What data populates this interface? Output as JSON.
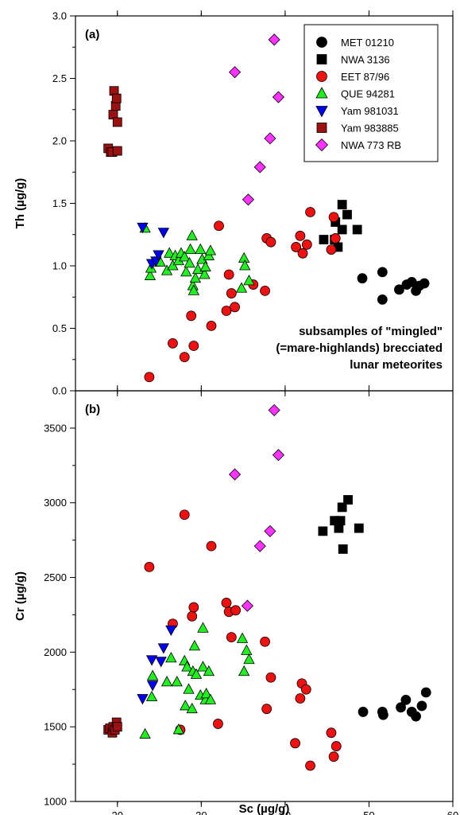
{
  "chart_data": [
    {
      "type": "scatter",
      "panel_label": "(a)",
      "xlabel": "Sc  (µg/g)",
      "ylabel": "Th  (µg/g)",
      "xlim": [
        15,
        60
      ],
      "ylim": [
        0.0,
        3.0
      ],
      "y_ticks": [
        "0.0",
        "0.5",
        "1.0",
        "1.5",
        "2.0",
        "2.5",
        "3.0"
      ],
      "x_ticks": [
        "20",
        "30",
        "40",
        "50",
        "60"
      ],
      "legend_position": "top-right",
      "annotation": [
        "subsamples of \"mingled\"",
        "(=mare-highlands) brecciated",
        "lunar meteorites"
      ],
      "series": [
        {
          "name": "MET 01210",
          "marker": "circle",
          "color": "#000000",
          "points": [
            [
              49.2,
              0.9
            ],
            [
              51.6,
              0.95
            ],
            [
              51.6,
              0.73
            ],
            [
              53.6,
              0.81
            ],
            [
              54.5,
              0.85
            ],
            [
              55.1,
              0.87
            ],
            [
              55.6,
              0.8
            ],
            [
              56.0,
              0.84
            ],
            [
              56.6,
              0.86
            ]
          ]
        },
        {
          "name": "NWA 3136",
          "marker": "square",
          "color": "#000000",
          "points": [
            [
              44.6,
              1.21
            ],
            [
              45.9,
              1.21
            ],
            [
              46.3,
              1.15
            ],
            [
              46.8,
              1.49
            ],
            [
              46.8,
              1.29
            ],
            [
              47.4,
              1.41
            ],
            [
              48.6,
              1.29
            ],
            [
              46.0,
              1.35
            ]
          ]
        },
        {
          "name": "EET 87/96",
          "marker": "circle",
          "color": "#ee1111",
          "points": [
            [
              23.8,
              0.11
            ],
            [
              26.6,
              0.38
            ],
            [
              28.0,
              0.27
            ],
            [
              28.8,
              0.6
            ],
            [
              29.1,
              0.36
            ],
            [
              31.2,
              0.52
            ],
            [
              32.1,
              1.32
            ],
            [
              33.0,
              0.64
            ],
            [
              33.3,
              0.93
            ],
            [
              33.6,
              0.78
            ],
            [
              34.0,
              0.67
            ],
            [
              36.2,
              0.85
            ],
            [
              37.6,
              0.8
            ],
            [
              37.8,
              1.22
            ],
            [
              38.3,
              1.19
            ],
            [
              41.3,
              1.15
            ],
            [
              41.8,
              1.24
            ],
            [
              42.1,
              1.1
            ],
            [
              42.6,
              1.17
            ],
            [
              43.0,
              1.43
            ],
            [
              45.5,
              1.13
            ],
            [
              45.8,
              1.39
            ],
            [
              46.0,
              1.22
            ]
          ]
        },
        {
          "name": "QUE 94281",
          "marker": "triangle-up",
          "color": "#22ee22",
          "points": [
            [
              23.3,
              1.3
            ],
            [
              23.9,
              0.92
            ],
            [
              24.0,
              0.98
            ],
            [
              24.4,
              1.03
            ],
            [
              25.1,
              1.03
            ],
            [
              25.9,
              0.96
            ],
            [
              26.2,
              1.1
            ],
            [
              26.6,
              1.0
            ],
            [
              26.9,
              1.08
            ],
            [
              27.3,
              1.04
            ],
            [
              27.6,
              1.1
            ],
            [
              28.0,
              1.07
            ],
            [
              28.2,
              0.95
            ],
            [
              28.6,
              1.02
            ],
            [
              28.7,
              1.13
            ],
            [
              28.9,
              1.24
            ],
            [
              29.0,
              0.84
            ],
            [
              29.1,
              0.8
            ],
            [
              29.3,
              0.9
            ],
            [
              29.6,
              0.97
            ],
            [
              29.9,
              1.13
            ],
            [
              30.1,
              1.05
            ],
            [
              30.4,
              0.93
            ],
            [
              30.5,
              0.99
            ],
            [
              30.9,
              1.08
            ],
            [
              31.1,
              1.12
            ],
            [
              34.8,
              0.82
            ],
            [
              35.1,
              1.06
            ],
            [
              35.2,
              1.0
            ],
            [
              35.7,
              0.88
            ]
          ]
        },
        {
          "name": "Yam 981031",
          "marker": "triangle-down",
          "color": "#0000ee",
          "points": [
            [
              23.0,
              1.31
            ],
            [
              24.1,
              1.02
            ],
            [
              24.6,
              1.04
            ],
            [
              24.9,
              1.09
            ],
            [
              25.5,
              1.27
            ]
          ]
        },
        {
          "name": "Yam 983885",
          "marker": "square",
          "color": "#991111",
          "points": [
            [
              18.9,
              1.94
            ],
            [
              19.2,
              1.91
            ],
            [
              19.4,
              1.91
            ],
            [
              19.5,
              2.21
            ],
            [
              19.6,
              2.4
            ],
            [
              19.8,
              2.28
            ],
            [
              19.9,
              2.34
            ],
            [
              20.0,
              2.15
            ],
            [
              20.0,
              1.92
            ]
          ]
        },
        {
          "name": "NWA 773 RB",
          "marker": "diamond",
          "color": "#ff33ff",
          "points": [
            [
              34.0,
              2.55
            ],
            [
              35.6,
              1.53
            ],
            [
              37.0,
              1.79
            ],
            [
              38.2,
              2.02
            ],
            [
              38.7,
              2.81
            ],
            [
              39.2,
              2.35
            ]
          ]
        }
      ]
    },
    {
      "type": "scatter",
      "panel_label": "(b)",
      "xlabel": "Sc  (µg/g)",
      "ylabel": "Cr  (µg/g)",
      "xlim": [
        15,
        60
      ],
      "ylim": [
        1000,
        3750
      ],
      "y_ticks": [
        "1000",
        "1500",
        "2000",
        "2500",
        "3000",
        "3500"
      ],
      "x_ticks": [
        "20",
        "30",
        "40",
        "50",
        "60"
      ],
      "series": [
        {
          "name": "MET 01210",
          "marker": "circle",
          "color": "#000000",
          "points": [
            [
              49.3,
              1600
            ],
            [
              51.6,
              1600
            ],
            [
              51.7,
              1580
            ],
            [
              53.8,
              1630
            ],
            [
              54.4,
              1680
            ],
            [
              55.1,
              1600
            ],
            [
              55.6,
              1570
            ],
            [
              56.3,
              1640
            ],
            [
              56.8,
              1730
            ]
          ]
        },
        {
          "name": "NWA 3136",
          "marker": "square",
          "color": "#000000",
          "points": [
            [
              44.5,
              2810
            ],
            [
              45.9,
              2880
            ],
            [
              46.4,
              2830
            ],
            [
              46.6,
              2880
            ],
            [
              46.8,
              2970
            ],
            [
              46.9,
              2690
            ],
            [
              47.5,
              3020
            ],
            [
              48.8,
              2830
            ]
          ]
        },
        {
          "name": "EET 87/96",
          "marker": "circle",
          "color": "#ee1111",
          "points": [
            [
              23.8,
              2570
            ],
            [
              26.6,
              2190
            ],
            [
              27.5,
              1480
            ],
            [
              28.0,
              2920
            ],
            [
              28.9,
              2240
            ],
            [
              29.1,
              2300
            ],
            [
              31.2,
              2710
            ],
            [
              32.0,
              1520
            ],
            [
              33.0,
              2330
            ],
            [
              33.3,
              2270
            ],
            [
              33.6,
              2100
            ],
            [
              34.1,
              2280
            ],
            [
              37.6,
              2070
            ],
            [
              37.8,
              1620
            ],
            [
              38.3,
              1830
            ],
            [
              41.2,
              1390
            ],
            [
              41.8,
              1690
            ],
            [
              42.0,
              1790
            ],
            [
              42.5,
              1750
            ],
            [
              43.0,
              1240
            ],
            [
              45.5,
              1460
            ],
            [
              45.8,
              1300
            ],
            [
              46.1,
              1370
            ]
          ]
        },
        {
          "name": "QUE 94281",
          "marker": "triangle-up",
          "color": "#22ee22",
          "points": [
            [
              23.3,
              1450
            ],
            [
              24.1,
              1700
            ],
            [
              24.2,
              1840
            ],
            [
              25.9,
              1800
            ],
            [
              26.4,
              1960
            ],
            [
              27.1,
              1800
            ],
            [
              27.3,
              1480
            ],
            [
              28.0,
              1940
            ],
            [
              28.1,
              1640
            ],
            [
              28.3,
              1900
            ],
            [
              28.5,
              1750
            ],
            [
              28.9,
              1620
            ],
            [
              29.0,
              1870
            ],
            [
              29.2,
              2040
            ],
            [
              29.4,
              1850
            ],
            [
              29.9,
              1710
            ],
            [
              30.2,
              1900
            ],
            [
              30.5,
              1680
            ],
            [
              30.6,
              1720
            ],
            [
              30.9,
              1870
            ],
            [
              31.1,
              1680
            ],
            [
              30.2,
              2160
            ],
            [
              34.9,
              2090
            ],
            [
              35.1,
              1870
            ],
            [
              35.4,
              2010
            ],
            [
              35.7,
              1950
            ]
          ]
        },
        {
          "name": "Yam 981031",
          "marker": "triangle-down",
          "color": "#0000ee",
          "points": [
            [
              23.0,
              1690
            ],
            [
              24.1,
              1950
            ],
            [
              24.2,
              1780
            ],
            [
              25.2,
              1940
            ],
            [
              25.5,
              2030
            ],
            [
              26.4,
              2150
            ]
          ]
        },
        {
          "name": "Yam 983885",
          "marker": "square",
          "color": "#991111",
          "points": [
            [
              18.9,
              1480
            ],
            [
              19.1,
              1490
            ],
            [
              19.4,
              1460
            ],
            [
              19.5,
              1500
            ],
            [
              19.7,
              1480
            ],
            [
              19.9,
              1530
            ],
            [
              20.0,
              1500
            ]
          ]
        },
        {
          "name": "NWA 773 RB",
          "marker": "diamond",
          "color": "#ff33ff",
          "points": [
            [
              34.0,
              3190
            ],
            [
              35.5,
              2310
            ],
            [
              37.0,
              2710
            ],
            [
              38.2,
              2810
            ],
            [
              38.7,
              3620
            ],
            [
              39.2,
              3320
            ]
          ]
        }
      ]
    }
  ]
}
